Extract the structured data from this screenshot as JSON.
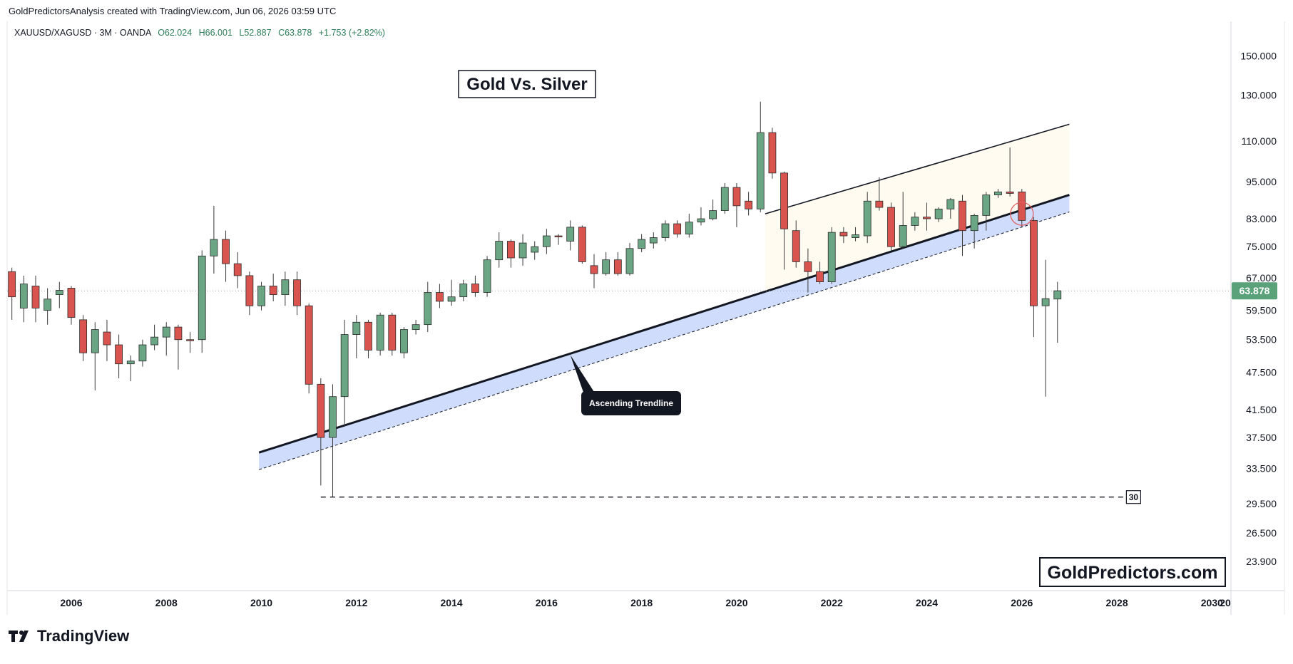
{
  "header": {
    "attribution": "GoldPredictorsAnalysis created with TradingView.com, Jun 06, 2026 03:59 UTC"
  },
  "legend": {
    "symbol": "XAUUSD/XAGUSD · 3M · OANDA",
    "o": "O62.024",
    "h": "H66.001",
    "l": "L52.887",
    "c": "C63.878",
    "change": "+1.753 (+2.82%)"
  },
  "footer": {
    "brand": "TradingView"
  },
  "colors": {
    "up": "#6aa584",
    "down": "#d9534f",
    "ink": "#131722",
    "band": "#cfdcfb",
    "channel": "#fffbf0",
    "last_price_bg": "#5aa27a",
    "grid": "#e6e6e6"
  },
  "chart_data": {
    "type": "candlestick",
    "title": "Gold Vs. Silver",
    "watermark": "GoldPredictors.com",
    "interval": "3M",
    "y_scale": "log",
    "ylim": [
      21.5,
      170
    ],
    "xlim": [
      2004.65,
      2030.4
    ],
    "y_ticks": [
      "150.000",
      "130.000",
      "110.000",
      "95.000",
      "83.000",
      "75.000",
      "67.000",
      "59.500",
      "53.500",
      "47.500",
      "41.500",
      "37.500",
      "33.500",
      "29.500",
      "26.500",
      "23.900"
    ],
    "x_ticks": [
      "2006",
      "2008",
      "2010",
      "2012",
      "2014",
      "2016",
      "2018",
      "2020",
      "2022",
      "2024",
      "2026",
      "2028",
      "2030",
      "20"
    ],
    "last_price": "63.878",
    "last_price_value": 63.878,
    "annotations": [
      {
        "type": "label",
        "text": "Ascending Trendline"
      },
      {
        "type": "level",
        "text": "30",
        "value": 30.2
      }
    ],
    "candles": [
      {
        "t": 2004.75,
        "o": 68.5,
        "h": 69.5,
        "l": 57.5,
        "c": 62.5
      },
      {
        "t": 2005.0,
        "o": 60.0,
        "h": 67.5,
        "l": 57.0,
        "c": 65.5
      },
      {
        "t": 2005.25,
        "o": 65.0,
        "h": 67.5,
        "l": 57.0,
        "c": 60.0
      },
      {
        "t": 2005.5,
        "o": 59.5,
        "h": 64.5,
        "l": 56.5,
        "c": 62.0
      },
      {
        "t": 2005.75,
        "o": 63.0,
        "h": 66.0,
        "l": 60.0,
        "c": 64.0
      },
      {
        "t": 2006.0,
        "o": 64.5,
        "h": 65.0,
        "l": 56.5,
        "c": 58.0
      },
      {
        "t": 2006.25,
        "o": 57.5,
        "h": 58.5,
        "l": 49.5,
        "c": 51.0
      },
      {
        "t": 2006.5,
        "o": 51.0,
        "h": 57.0,
        "l": 44.5,
        "c": 55.5
      },
      {
        "t": 2006.75,
        "o": 55.0,
        "h": 57.5,
        "l": 49.5,
        "c": 52.5
      },
      {
        "t": 2007.0,
        "o": 52.5,
        "h": 54.5,
        "l": 46.5,
        "c": 49.0
      },
      {
        "t": 2007.25,
        "o": 49.0,
        "h": 50.5,
        "l": 46.0,
        "c": 49.5
      },
      {
        "t": 2007.5,
        "o": 49.5,
        "h": 53.5,
        "l": 48.5,
        "c": 52.5
      },
      {
        "t": 2007.75,
        "o": 52.5,
        "h": 56.5,
        "l": 51.5,
        "c": 54.0
      },
      {
        "t": 2008.0,
        "o": 54.0,
        "h": 57.0,
        "l": 50.5,
        "c": 56.0
      },
      {
        "t": 2008.25,
        "o": 56.0,
        "h": 56.5,
        "l": 48.0,
        "c": 53.5
      },
      {
        "t": 2008.5,
        "o": 53.5,
        "h": 55.0,
        "l": 51.0,
        "c": 53.3
      },
      {
        "t": 2008.75,
        "o": 53.5,
        "h": 74.0,
        "l": 51.0,
        "c": 72.5
      },
      {
        "t": 2009.0,
        "o": 72.5,
        "h": 87.0,
        "l": 68.0,
        "c": 77.0
      },
      {
        "t": 2009.25,
        "o": 77.0,
        "h": 79.5,
        "l": 66.0,
        "c": 70.5
      },
      {
        "t": 2009.5,
        "o": 70.5,
        "h": 73.5,
        "l": 64.5,
        "c": 67.5
      },
      {
        "t": 2009.75,
        "o": 67.5,
        "h": 68.5,
        "l": 58.5,
        "c": 60.5
      },
      {
        "t": 2010.0,
        "o": 60.5,
        "h": 66.0,
        "l": 59.5,
        "c": 65.0
      },
      {
        "t": 2010.25,
        "o": 65.0,
        "h": 68.0,
        "l": 61.5,
        "c": 63.0
      },
      {
        "t": 2010.5,
        "o": 63.0,
        "h": 68.5,
        "l": 60.5,
        "c": 66.5
      },
      {
        "t": 2010.75,
        "o": 66.5,
        "h": 68.5,
        "l": 58.5,
        "c": 60.5
      },
      {
        "t": 2011.0,
        "o": 60.5,
        "h": 61.0,
        "l": 44.0,
        "c": 45.5
      },
      {
        "t": 2011.25,
        "o": 45.5,
        "h": 46.5,
        "l": 31.5,
        "c": 37.5
      },
      {
        "t": 2011.5,
        "o": 37.5,
        "h": 45.5,
        "l": 30.2,
        "c": 43.5
      },
      {
        "t": 2011.75,
        "o": 43.5,
        "h": 57.5,
        "l": 39.0,
        "c": 54.5
      },
      {
        "t": 2012.0,
        "o": 54.5,
        "h": 58.5,
        "l": 50.0,
        "c": 57.0
      },
      {
        "t": 2012.25,
        "o": 57.0,
        "h": 57.5,
        "l": 50.0,
        "c": 51.5
      },
      {
        "t": 2012.5,
        "o": 51.5,
        "h": 59.0,
        "l": 50.5,
        "c": 58.5
      },
      {
        "t": 2012.75,
        "o": 58.5,
        "h": 59.0,
        "l": 50.5,
        "c": 51.5
      },
      {
        "t": 2013.0,
        "o": 51.0,
        "h": 56.0,
        "l": 50.0,
        "c": 55.5
      },
      {
        "t": 2013.25,
        "o": 55.5,
        "h": 57.5,
        "l": 54.5,
        "c": 56.5
      },
      {
        "t": 2013.5,
        "o": 56.5,
        "h": 66.0,
        "l": 55.0,
        "c": 63.5
      },
      {
        "t": 2013.75,
        "o": 63.5,
        "h": 65.5,
        "l": 60.0,
        "c": 61.5
      },
      {
        "t": 2014.0,
        "o": 61.5,
        "h": 66.5,
        "l": 60.5,
        "c": 62.5
      },
      {
        "t": 2014.25,
        "o": 62.5,
        "h": 66.5,
        "l": 61.5,
        "c": 65.5
      },
      {
        "t": 2014.5,
        "o": 65.5,
        "h": 67.5,
        "l": 62.5,
        "c": 63.5
      },
      {
        "t": 2014.75,
        "o": 63.5,
        "h": 72.5,
        "l": 62.5,
        "c": 71.5
      },
      {
        "t": 2015.0,
        "o": 71.5,
        "h": 79.0,
        "l": 69.5,
        "c": 76.5
      },
      {
        "t": 2015.25,
        "o": 76.5,
        "h": 77.0,
        "l": 69.5,
        "c": 72.0
      },
      {
        "t": 2015.5,
        "o": 72.0,
        "h": 78.5,
        "l": 70.0,
        "c": 76.0
      },
      {
        "t": 2015.75,
        "o": 73.5,
        "h": 76.5,
        "l": 71.5,
        "c": 75.0
      },
      {
        "t": 2016.0,
        "o": 75.0,
        "h": 80.0,
        "l": 73.0,
        "c": 78.0
      },
      {
        "t": 2016.25,
        "o": 78.0,
        "h": 78.5,
        "l": 75.5,
        "c": 77.8
      },
      {
        "t": 2016.5,
        "o": 76.5,
        "h": 82.5,
        "l": 74.0,
        "c": 80.5
      },
      {
        "t": 2016.75,
        "o": 80.5,
        "h": 81.0,
        "l": 70.5,
        "c": 71.0
      },
      {
        "t": 2017.0,
        "o": 70.0,
        "h": 73.0,
        "l": 64.5,
        "c": 68.0
      },
      {
        "t": 2017.25,
        "o": 68.0,
        "h": 73.5,
        "l": 67.5,
        "c": 71.5
      },
      {
        "t": 2017.5,
        "o": 71.5,
        "h": 73.5,
        "l": 67.5,
        "c": 68.0
      },
      {
        "t": 2017.75,
        "o": 68.0,
        "h": 76.0,
        "l": 67.5,
        "c": 74.5
      },
      {
        "t": 2018.0,
        "o": 74.5,
        "h": 78.5,
        "l": 73.5,
        "c": 77.0
      },
      {
        "t": 2018.25,
        "o": 76.0,
        "h": 79.0,
        "l": 74.5,
        "c": 77.5
      },
      {
        "t": 2018.5,
        "o": 77.5,
        "h": 82.5,
        "l": 76.5,
        "c": 81.5
      },
      {
        "t": 2018.75,
        "o": 81.5,
        "h": 82.5,
        "l": 77.5,
        "c": 78.5
      },
      {
        "t": 2019.0,
        "o": 78.5,
        "h": 84.5,
        "l": 77.5,
        "c": 82.0
      },
      {
        "t": 2019.25,
        "o": 82.0,
        "h": 86.5,
        "l": 81.0,
        "c": 83.0
      },
      {
        "t": 2019.5,
        "o": 83.0,
        "h": 89.0,
        "l": 82.5,
        "c": 85.5
      },
      {
        "t": 2019.75,
        "o": 85.5,
        "h": 94.5,
        "l": 84.5,
        "c": 93.0
      },
      {
        "t": 2020.0,
        "o": 93.0,
        "h": 94.5,
        "l": 80.5,
        "c": 87.0
      },
      {
        "t": 2020.25,
        "o": 88.5,
        "h": 91.5,
        "l": 84.0,
        "c": 86.0
      },
      {
        "t": 2020.5,
        "o": 86.0,
        "h": 127.0,
        "l": 85.0,
        "c": 113.5
      },
      {
        "t": 2020.75,
        "o": 113.5,
        "h": 115.5,
        "l": 96.0,
        "c": 98.0
      },
      {
        "t": 2021.0,
        "o": 98.0,
        "h": 98.5,
        "l": 69.0,
        "c": 80.0
      },
      {
        "t": 2021.25,
        "o": 79.5,
        "h": 82.5,
        "l": 69.5,
        "c": 71.0
      },
      {
        "t": 2021.5,
        "o": 71.0,
        "h": 74.5,
        "l": 63.5,
        "c": 68.5
      },
      {
        "t": 2021.75,
        "o": 68.5,
        "h": 71.0,
        "l": 65.5,
        "c": 66.0
      },
      {
        "t": 2022.0,
        "o": 66.0,
        "h": 80.5,
        "l": 65.5,
        "c": 79.0
      },
      {
        "t": 2022.25,
        "o": 79.0,
        "h": 80.5,
        "l": 76.0,
        "c": 78.0
      },
      {
        "t": 2022.5,
        "o": 77.5,
        "h": 80.5,
        "l": 76.5,
        "c": 78.3
      },
      {
        "t": 2022.75,
        "o": 78.0,
        "h": 91.5,
        "l": 76.0,
        "c": 88.5
      },
      {
        "t": 2023.0,
        "o": 88.5,
        "h": 96.5,
        "l": 85.5,
        "c": 86.5
      },
      {
        "t": 2023.25,
        "o": 86.5,
        "h": 88.0,
        "l": 74.0,
        "c": 75.0
      },
      {
        "t": 2023.5,
        "o": 75.0,
        "h": 91.5,
        "l": 74.5,
        "c": 81.0
      },
      {
        "t": 2023.75,
        "o": 81.0,
        "h": 85.0,
        "l": 79.5,
        "c": 83.5
      },
      {
        "t": 2024.0,
        "o": 83.5,
        "h": 88.0,
        "l": 79.5,
        "c": 83.0
      },
      {
        "t": 2024.25,
        "o": 83.0,
        "h": 86.5,
        "l": 82.0,
        "c": 86.0
      },
      {
        "t": 2024.5,
        "o": 86.0,
        "h": 89.5,
        "l": 83.0,
        "c": 89.0
      },
      {
        "t": 2024.75,
        "o": 88.5,
        "h": 90.5,
        "l": 72.5,
        "c": 79.5
      },
      {
        "t": 2025.0,
        "o": 79.5,
        "h": 84.5,
        "l": 74.5,
        "c": 84.0
      },
      {
        "t": 2025.25,
        "o": 84.0,
        "h": 91.5,
        "l": 79.5,
        "c": 90.5
      },
      {
        "t": 2025.5,
        "o": 90.5,
        "h": 92.5,
        "l": 89.5,
        "c": 91.5
      },
      {
        "t": 2025.75,
        "o": 91.5,
        "h": 107.5,
        "l": 90.0,
        "c": 91.0
      },
      {
        "t": 2026.0,
        "o": 91.5,
        "h": 92.5,
        "l": 80.5,
        "c": 82.5
      },
      {
        "t": 2026.25,
        "o": 82.5,
        "h": 83.5,
        "l": 54.0,
        "c": 60.5
      },
      {
        "t": 2026.5,
        "o": 60.5,
        "h": 71.5,
        "l": 43.5,
        "c": 62.1
      },
      {
        "t": 2026.75,
        "o": 62.0,
        "h": 66.0,
        "l": 52.9,
        "c": 63.9
      }
    ]
  }
}
